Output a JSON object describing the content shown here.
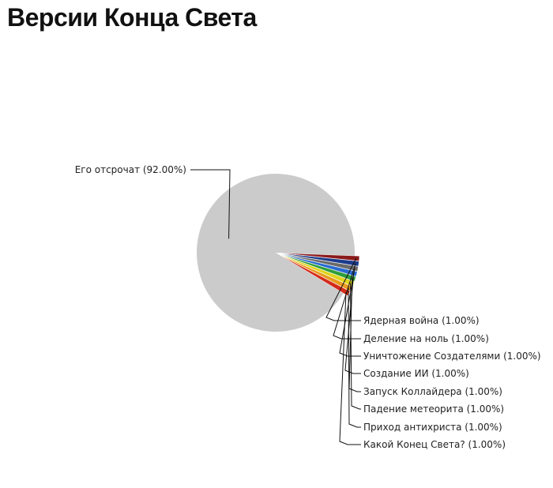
{
  "chart_data": {
    "type": "pie",
    "title": "Версии Конца Света",
    "slices": [
      {
        "label": "Его отсрочат",
        "value": 92.0,
        "display": "Его отсрочат (92.00%)",
        "color": "#cbcbcb"
      },
      {
        "label": "Ядерная война",
        "value": 1.0,
        "display": "Ядерная война (1.00%)",
        "color": "#8b1a1a"
      },
      {
        "label": "Деление на ноль",
        "value": 1.0,
        "display": "Деление на ноль (1.00%)",
        "color": "#1c3b8c"
      },
      {
        "label": "Уничтожение Создателями",
        "value": 1.0,
        "display": "Уничтожение Создателями (1.00%)",
        "color": "#6a6a6a"
      },
      {
        "label": "Создание ИИ",
        "value": 1.0,
        "display": "Создание ИИ (1.00%)",
        "color": "#2a6bd1"
      },
      {
        "label": "Запуск Коллайдера",
        "value": 1.0,
        "display": "Запуск Коллайдера (1.00%)",
        "color": "#2e9e3a"
      },
      {
        "label": "Падение метеорита",
        "value": 1.0,
        "display": "Падение метеорита (1.00%)",
        "color": "#e0d41c"
      },
      {
        "label": "Приход антихриста",
        "value": 1.0,
        "display": "Приход антихриста (1.00%)",
        "color": "#e89b1e"
      },
      {
        "label": "Какой Конец Света?",
        "value": 1.0,
        "display": "Какой Конец Света? (1.00%)",
        "color": "#d42b1a"
      }
    ]
  }
}
